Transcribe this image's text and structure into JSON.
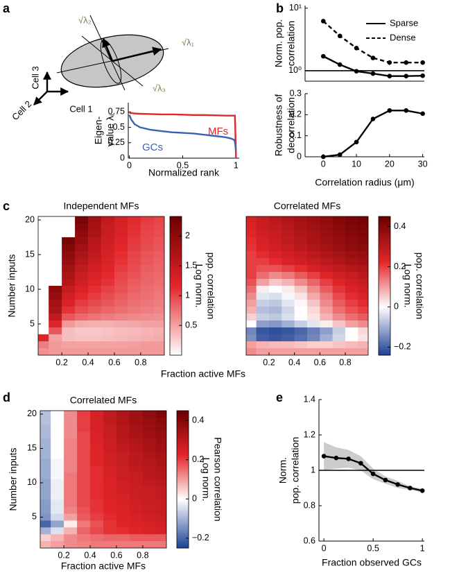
{
  "panel_labels": [
    "a",
    "b",
    "c",
    "d",
    "e"
  ],
  "diagram": {
    "axes": [
      "Cell 3",
      "Cell 2",
      "Cell 1"
    ],
    "eigen_labels": [
      "√λ₂",
      "√λ₁",
      "√λ₃"
    ]
  },
  "chart_data": [
    {
      "type": "line",
      "x_label": "Normalized rank",
      "y_label": [
        "Eigen-",
        "value λᵢ"
      ],
      "legend": "inline",
      "x": [
        0,
        0.02,
        0.05,
        0.1,
        0.2,
        0.3,
        0.4,
        0.5,
        0.6,
        0.7,
        0.8,
        0.9,
        0.95,
        0.98,
        0.99,
        1
      ],
      "series": [
        {
          "name": "MFs",
          "color": "#e3262a",
          "values": [
            0.73,
            0.73,
            0.725,
            0.72,
            0.715,
            0.71,
            0.71,
            0.705,
            0.7,
            0.7,
            0.695,
            0.69,
            0.69,
            0.69,
            0.69,
            0.0
          ]
        },
        {
          "name": "GCs",
          "color": "#3a5fb5",
          "values": [
            0.7,
            0.62,
            0.55,
            0.5,
            0.46,
            0.44,
            0.42,
            0.41,
            0.4,
            0.38,
            0.36,
            0.34,
            0.32,
            0.3,
            0.27,
            0.12
          ]
        }
      ],
      "xlim": [
        -0.01,
        1.03
      ],
      "xticks": [
        0,
        0.5,
        1
      ],
      "ylim": [
        0,
        0.9
      ],
      "yticks": [
        0,
        0.25,
        0.5,
        0.75
      ]
    },
    {
      "type": "line",
      "y_label": [
        "Norm. pop.",
        "correlation"
      ],
      "yscale": "log",
      "legend": "upper right",
      "x": [
        0,
        5,
        10,
        15,
        20,
        25,
        30
      ],
      "series": [
        {
          "name": "Sparse",
          "color": "#000000",
          "dash": false,
          "marker": true,
          "values": [
            1.7,
            1.25,
            0.98,
            0.9,
            0.82,
            0.82,
            0.83
          ]
        },
        {
          "name": "Dense",
          "color": "#000000",
          "dash": true,
          "marker": true,
          "values": [
            6.2,
            3.6,
            2.3,
            1.6,
            1.35,
            1.35,
            1.35
          ]
        }
      ],
      "reference_line": 1,
      "xlim": [
        -5.5,
        30.5
      ],
      "ylim": [
        0.68,
        11
      ],
      "yticks": [
        {
          "value": 1,
          "label": "10⁰"
        },
        {
          "value": 10,
          "label": "10¹"
        }
      ]
    },
    {
      "type": "line",
      "x_label": "Correlation radius (μm)",
      "y_label": [
        "Robustness of",
        "decorrelation"
      ],
      "x": [
        0,
        5,
        10,
        15,
        20,
        25,
        30
      ],
      "series": [
        {
          "color": "#000000",
          "dash": false,
          "marker": true,
          "values": [
            0,
            0.01,
            0.07,
            0.18,
            0.22,
            0.22,
            0.205
          ]
        }
      ],
      "xlim": [
        -5.5,
        30.5
      ],
      "xticks": [
        0,
        10,
        20,
        30
      ],
      "ylim": [
        0,
        0.3
      ],
      "yticks": [
        0,
        0.1,
        0.2,
        0.3
      ]
    },
    {
      "type": "heatmap",
      "title": "Independent MFs",
      "y_label": "Number inputs",
      "x_label": "Fraction active MFs",
      "colorbar_label": [
        "Log norm.",
        "pop. correlation"
      ],
      "cmap": "sequential",
      "colors": [
        "#ffffff",
        "#e3262a",
        "#6b0000"
      ],
      "x": [
        0.05,
        0.15,
        0.25,
        0.35,
        0.45,
        0.55,
        0.65,
        0.75,
        0.85,
        0.95
      ],
      "y": [
        20,
        19,
        18,
        17,
        16,
        15,
        14,
        13,
        12,
        11,
        10,
        9,
        8,
        7,
        6,
        5,
        4,
        3,
        2,
        1
      ],
      "z": [
        [
          null,
          null,
          null,
          2.2,
          1.8,
          1.5,
          1.3,
          1.15,
          1.05,
          1.0
        ],
        [
          null,
          null,
          null,
          2.1,
          1.75,
          1.45,
          1.28,
          1.12,
          1.02,
          0.97
        ],
        [
          null,
          null,
          null,
          2.0,
          1.7,
          1.42,
          1.25,
          1.1,
          1.0,
          0.95
        ],
        [
          null,
          null,
          2.2,
          1.9,
          1.6,
          1.38,
          1.2,
          1.07,
          0.98,
          0.92
        ],
        [
          null,
          null,
          2.1,
          1.8,
          1.55,
          1.33,
          1.17,
          1.04,
          0.95,
          0.9
        ],
        [
          null,
          null,
          2.0,
          1.7,
          1.5,
          1.3,
          1.13,
          1.0,
          0.92,
          0.87
        ],
        [
          null,
          null,
          1.9,
          1.6,
          1.42,
          1.25,
          1.1,
          0.98,
          0.9,
          0.85
        ],
        [
          null,
          null,
          1.8,
          1.5,
          1.35,
          1.2,
          1.05,
          0.95,
          0.87,
          0.82
        ],
        [
          null,
          null,
          1.7,
          1.42,
          1.28,
          1.15,
          1.0,
          0.92,
          0.84,
          0.8
        ],
        [
          null,
          null,
          1.6,
          1.35,
          1.2,
          1.1,
          0.97,
          0.88,
          0.82,
          0.78
        ],
        [
          null,
          2.0,
          1.45,
          1.25,
          1.12,
          1.02,
          0.93,
          0.85,
          0.79,
          0.75
        ],
        [
          null,
          1.9,
          1.35,
          1.15,
          1.05,
          0.96,
          0.88,
          0.81,
          0.76,
          0.72
        ],
        [
          null,
          1.8,
          1.25,
          1.05,
          0.97,
          0.9,
          0.83,
          0.77,
          0.73,
          0.7
        ],
        [
          null,
          1.7,
          1.1,
          0.95,
          0.88,
          0.82,
          0.77,
          0.72,
          0.69,
          0.66
        ],
        [
          null,
          1.5,
          0.9,
          0.8,
          0.75,
          0.7,
          0.67,
          0.64,
          0.62,
          0.6
        ],
        [
          null,
          1.2,
          0.55,
          0.45,
          0.42,
          0.42,
          0.45,
          0.48,
          0.5,
          0.52
        ],
        [
          null,
          0.9,
          0.35,
          0.3,
          0.3,
          0.32,
          0.35,
          0.38,
          0.4,
          0.42
        ],
        [
          1.2,
          0.5,
          0.35,
          0.32,
          0.33,
          0.35,
          0.37,
          0.4,
          0.42,
          0.45
        ],
        [
          0.7,
          0.55,
          0.5,
          0.5,
          0.5,
          0.5,
          0.5,
          0.52,
          0.55,
          0.55
        ],
        [
          0.6,
          0.55,
          0.55,
          0.55,
          0.55,
          0.55,
          0.55,
          0.55,
          0.55,
          0.55
        ]
      ],
      "xlim": [
        0.02,
        0.98
      ],
      "xticks": [
        0.2,
        0.4,
        0.6,
        0.8
      ],
      "ylim": [
        0.5,
        20.5
      ],
      "yticks": [
        5,
        10,
        15,
        20
      ],
      "clim": [
        0,
        2.33
      ],
      "colorbar_ticks": [
        0.5,
        1,
        1.5,
        2
      ]
    },
    {
      "type": "heatmap",
      "title": "Correlated MFs",
      "colorbar_label": [
        "Log norm.",
        "pop. correlation"
      ],
      "cmap": "diverging",
      "colors": [
        "#1c3f94",
        "#ffffff",
        "#e3262a",
        "#6b0000"
      ],
      "x": [
        0.05,
        0.15,
        0.25,
        0.35,
        0.45,
        0.55,
        0.65,
        0.75,
        0.85,
        0.95
      ],
      "y": [
        20,
        19,
        18,
        17,
        16,
        15,
        14,
        13,
        12,
        11,
        10,
        9,
        8,
        7,
        6,
        5,
        4,
        3,
        2,
        1
      ],
      "z": [
        [
          0.25,
          0.28,
          0.3,
          0.32,
          0.34,
          0.36,
          0.38,
          0.4,
          0.42,
          0.43
        ],
        [
          0.24,
          0.27,
          0.29,
          0.31,
          0.33,
          0.35,
          0.37,
          0.39,
          0.41,
          0.42
        ],
        [
          0.23,
          0.26,
          0.28,
          0.3,
          0.32,
          0.34,
          0.36,
          0.38,
          0.4,
          0.41
        ],
        [
          0.22,
          0.25,
          0.27,
          0.29,
          0.31,
          0.33,
          0.35,
          0.37,
          0.39,
          0.4
        ],
        [
          0.21,
          0.24,
          0.26,
          0.28,
          0.3,
          0.32,
          0.34,
          0.36,
          0.38,
          0.39
        ],
        [
          0.2,
          0.22,
          0.24,
          0.26,
          0.28,
          0.3,
          0.32,
          0.34,
          0.36,
          0.37
        ],
        [
          0.2,
          0.2,
          0.22,
          0.24,
          0.26,
          0.28,
          0.3,
          0.32,
          0.34,
          0.35
        ],
        [
          0.2,
          0.18,
          0.18,
          0.2,
          0.22,
          0.25,
          0.27,
          0.29,
          0.31,
          0.32
        ],
        [
          0.2,
          0.15,
          0.12,
          0.14,
          0.17,
          0.2,
          0.23,
          0.26,
          0.28,
          0.3
        ],
        [
          0.18,
          0.1,
          0.06,
          0.08,
          0.12,
          0.16,
          0.2,
          0.23,
          0.26,
          0.28
        ],
        [
          0.15,
          0.02,
          0,
          0.02,
          0.06,
          0.12,
          0.17,
          0.21,
          0.24,
          0.26
        ],
        [
          0.12,
          -0.03,
          -0.04,
          -0.01,
          0.03,
          0.09,
          0.14,
          0.19,
          0.22,
          0.24
        ],
        [
          0.1,
          -0.06,
          -0.07,
          -0.03,
          0.01,
          0.06,
          0.12,
          0.17,
          0.2,
          0.22
        ],
        [
          0.08,
          -0.08,
          -0.09,
          -0.05,
          0,
          0.04,
          0.1,
          0.15,
          0.18,
          0.2
        ],
        [
          0.05,
          -0.06,
          -0.07,
          -0.04,
          0,
          0.03,
          0.08,
          0.12,
          0.15,
          0.17
        ],
        [
          0,
          -0.12,
          -0.13,
          -0.1,
          -0.06,
          -0.03,
          0.02,
          0.06,
          0.1,
          0.12
        ],
        [
          -0.15,
          -0.21,
          -0.22,
          -0.21,
          -0.19,
          -0.16,
          -0.12,
          -0.06,
          0,
          0.04
        ],
        [
          -0.14,
          -0.2,
          -0.21,
          -0.2,
          -0.18,
          -0.15,
          -0.1,
          -0.05,
          0,
          0.03
        ],
        [
          0.1,
          0.08,
          0.07,
          0.07,
          0.06,
          0.05,
          0.05,
          0.06,
          0.07,
          0.08
        ],
        [
          0.12,
          0.1,
          0.1,
          0.1,
          0.1,
          0.1,
          0.1,
          0.1,
          0.1,
          0.1
        ]
      ],
      "xlim": [
        0.02,
        0.98
      ],
      "xticks": [
        0.2,
        0.4,
        0.6,
        0.8
      ],
      "ylim": [
        0.5,
        20.5
      ],
      "clim": [
        -0.24,
        0.45
      ],
      "colorbar_ticks": [
        {
          "value": -0.2,
          "label": "−0.2"
        },
        0,
        0.2,
        0.4
      ]
    },
    {
      "type": "heatmap",
      "title": "Correlated MFs",
      "y_label": "Number inputs",
      "x_label": "Fraction active MFs",
      "colorbar_label": [
        "Log norm.",
        "Pearson correlation"
      ],
      "cmap": "diverging",
      "colors": [
        "#1c3f94",
        "#ffffff",
        "#e3262a",
        "#6b0000"
      ],
      "x": [
        0.05,
        0.15,
        0.25,
        0.35,
        0.45,
        0.55,
        0.65,
        0.75,
        0.85,
        0.95
      ],
      "y": [
        20,
        19,
        18,
        17,
        16,
        15,
        14,
        13,
        12,
        11,
        10,
        9,
        8,
        7,
        6,
        5,
        4,
        3,
        2,
        1
      ],
      "z": [
        [
          -0.08,
          0.0,
          0.12,
          0.2,
          0.25,
          0.29,
          0.32,
          0.35,
          0.38,
          0.41
        ],
        [
          -0.08,
          0.0,
          0.12,
          0.2,
          0.25,
          0.29,
          0.32,
          0.35,
          0.37,
          0.39
        ],
        [
          -0.09,
          0.0,
          0.12,
          0.2,
          0.25,
          0.28,
          0.31,
          0.34,
          0.36,
          0.38
        ],
        [
          -0.09,
          0.0,
          0.12,
          0.19,
          0.24,
          0.28,
          0.31,
          0.33,
          0.35,
          0.37
        ],
        [
          -0.1,
          0.0,
          0.13,
          0.19,
          0.24,
          0.27,
          0.3,
          0.32,
          0.34,
          0.36
        ],
        [
          -0.1,
          0.0,
          0.13,
          0.19,
          0.23,
          0.27,
          0.29,
          0.31,
          0.33,
          0.35
        ],
        [
          -0.1,
          0.0,
          0.13,
          0.19,
          0.23,
          0.26,
          0.28,
          0.3,
          0.32,
          0.34
        ],
        [
          -0.11,
          -0.01,
          0.13,
          0.19,
          0.23,
          0.26,
          0.28,
          0.3,
          0.31,
          0.33
        ],
        [
          -0.11,
          -0.01,
          0.13,
          0.19,
          0.22,
          0.25,
          0.27,
          0.29,
          0.3,
          0.32
        ],
        [
          -0.11,
          -0.01,
          0.14,
          0.19,
          0.22,
          0.25,
          0.27,
          0.28,
          0.3,
          0.31
        ],
        [
          -0.12,
          -0.02,
          0.14,
          0.19,
          0.22,
          0.24,
          0.26,
          0.28,
          0.29,
          0.3
        ],
        [
          -0.12,
          -0.02,
          0.14,
          0.19,
          0.22,
          0.24,
          0.26,
          0.27,
          0.28,
          0.29
        ],
        [
          -0.12,
          -0.02,
          0.14,
          0.19,
          0.22,
          0.24,
          0.25,
          0.27,
          0.28,
          0.29
        ],
        [
          -0.13,
          -0.03,
          0.14,
          0.19,
          0.21,
          0.23,
          0.25,
          0.26,
          0.27,
          0.28
        ],
        [
          -0.13,
          -0.03,
          0.13,
          0.18,
          0.21,
          0.23,
          0.24,
          0.26,
          0.27,
          0.28
        ],
        [
          -0.14,
          -0.05,
          0.1,
          0.17,
          0.2,
          0.22,
          0.24,
          0.25,
          0.26,
          0.27
        ],
        [
          -0.2,
          -0.12,
          0.02,
          0.14,
          0.18,
          0.21,
          0.23,
          0.24,
          0.25,
          0.26
        ],
        [
          -0.1,
          -0.04,
          0.08,
          0.16,
          0.19,
          0.21,
          0.22,
          0.23,
          0.24,
          0.25
        ],
        [
          0.05,
          0.08,
          0.12,
          0.14,
          0.15,
          0.16,
          0.16,
          0.17,
          0.17,
          0.17
        ],
        [
          0.08,
          0.1,
          0.12,
          0.13,
          0.14,
          0.14,
          0.14,
          0.14,
          0.14,
          0.14
        ]
      ],
      "xlim": [
        0.02,
        0.98
      ],
      "xticks": [
        0.2,
        0.4,
        0.6,
        0.8
      ],
      "ylim": [
        0.5,
        20.5
      ],
      "yticks": [
        5,
        10,
        15,
        20
      ],
      "clim": [
        -0.25,
        0.45
      ],
      "colorbar_ticks": [
        {
          "value": -0.2,
          "label": "−0.2"
        },
        0,
        0.2,
        0.4
      ]
    },
    {
      "type": "line",
      "x_label": "Fraction observed GCs",
      "y_label": [
        "Norm.",
        "pop. correlation"
      ],
      "x": [
        0,
        0.125,
        0.25,
        0.375,
        0.5,
        0.625,
        0.75,
        0.875,
        1
      ],
      "series": [
        {
          "color": "#000000",
          "band_color": "#cccccc",
          "dash": false,
          "marker": true,
          "values": [
            1.08,
            1.07,
            1.065,
            1.04,
            0.98,
            0.945,
            0.92,
            0.9,
            0.885
          ],
          "errors": [
            0.08,
            0.06,
            0.05,
            0.04,
            0.03,
            0.02,
            0.02,
            0.01,
            0.01
          ]
        }
      ],
      "reference_line": 1,
      "xlim": [
        -0.05,
        1.02
      ],
      "xticks": [
        0,
        0.5,
        1
      ],
      "ylim": [
        0.6,
        1.4
      ],
      "yticks": [
        0.6,
        0.8,
        1,
        1.2,
        1.4
      ]
    }
  ]
}
